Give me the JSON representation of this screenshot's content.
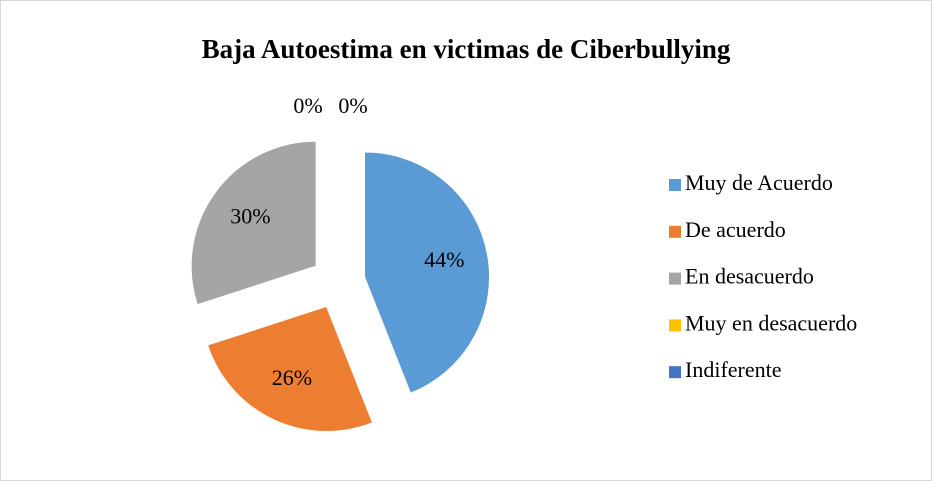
{
  "chart_data": {
    "type": "pie",
    "title": "Baja Autoestima en victimas de Ciberbullying",
    "categories": [
      "Muy de Acuerdo",
      "De acuerdo",
      "En desacuerdo",
      "Muy en desacuerdo",
      "Indiferente"
    ],
    "values": [
      44,
      26,
      30,
      0,
      0
    ],
    "value_labels": [
      "44%",
      "26%",
      "30%",
      "0%",
      "0%"
    ],
    "colors": [
      "#5b9bd5",
      "#ed7d31",
      "#a5a5a5",
      "#ffc000",
      "#4472c4"
    ],
    "legend": "right"
  }
}
